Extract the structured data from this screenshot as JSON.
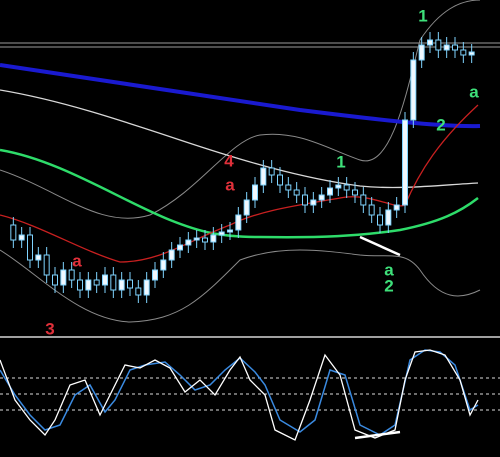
{
  "annotations": [
    "1",
    "a",
    "2",
    "4",
    "a",
    "1",
    "a",
    "a",
    "2",
    "3"
  ]
}
